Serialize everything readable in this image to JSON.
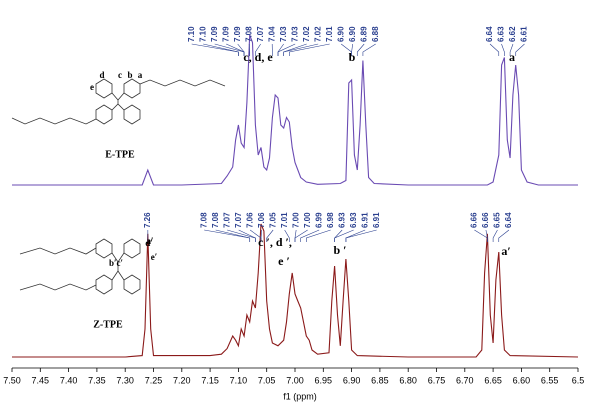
{
  "chart_data": [
    {
      "type": "line",
      "label": "E-TPE",
      "color": "#6a4bb3",
      "xlim": [
        7.5,
        6.5
      ],
      "ylim": [
        0,
        100
      ],
      "annotations": [
        "c, d, e",
        "b",
        "a"
      ],
      "structure_labels": [
        "d",
        "c",
        "b",
        "a",
        "e"
      ],
      "peak_labels": [
        {
          "value": 7.1,
          "label": "7.10"
        },
        {
          "value": 7.1,
          "label": "7.10"
        },
        {
          "value": 7.09,
          "label": "7.09"
        },
        {
          "value": 7.09,
          "label": "7.09"
        },
        {
          "value": 7.09,
          "label": "7.09"
        },
        {
          "value": 7.08,
          "label": "7.08"
        },
        {
          "value": 7.07,
          "label": "7.07"
        },
        {
          "value": 7.04,
          "label": "7.04"
        },
        {
          "value": 7.03,
          "label": "7.03"
        },
        {
          "value": 7.03,
          "label": "7.03"
        },
        {
          "value": 7.02,
          "label": "7.02"
        },
        {
          "value": 7.02,
          "label": "7.02"
        },
        {
          "value": 7.01,
          "label": "7.01"
        },
        {
          "value": 6.9,
          "label": "6.90"
        },
        {
          "value": 6.9,
          "label": "6.90"
        },
        {
          "value": 6.89,
          "label": "6.89"
        },
        {
          "value": 6.88,
          "label": "6.88"
        },
        {
          "value": 6.64,
          "label": "6.64"
        },
        {
          "value": 6.63,
          "label": "6.63"
        },
        {
          "value": 6.62,
          "label": "6.62"
        },
        {
          "value": 6.61,
          "label": "6.61"
        }
      ],
      "x": [
        7.5,
        7.3,
        7.27,
        7.26,
        7.25,
        7.2,
        7.13,
        7.12,
        7.11,
        7.105,
        7.1,
        7.095,
        7.09,
        7.085,
        7.08,
        7.075,
        7.07,
        7.065,
        7.06,
        7.055,
        7.05,
        7.045,
        7.04,
        7.035,
        7.03,
        7.025,
        7.02,
        7.015,
        7.01,
        7.005,
        7.0,
        6.99,
        6.98,
        6.96,
        6.92,
        6.91,
        6.905,
        6.9,
        6.895,
        6.89,
        6.885,
        6.88,
        6.875,
        6.87,
        6.86,
        6.8,
        6.66,
        6.65,
        6.64,
        6.635,
        6.63,
        6.625,
        6.62,
        6.615,
        6.61,
        6.605,
        6.6,
        6.59,
        6.57,
        6.5
      ],
      "values": [
        0,
        0,
        0,
        10,
        0,
        0,
        1,
        6,
        12,
        30,
        40,
        28,
        25,
        55,
        100,
        95,
        40,
        20,
        25,
        12,
        10,
        18,
        45,
        60,
        58,
        40,
        38,
        45,
        42,
        25,
        15,
        5,
        2,
        0.5,
        1,
        3,
        68,
        70,
        20,
        10,
        40,
        83,
        40,
        5,
        1,
        0,
        0,
        2,
        20,
        80,
        85,
        30,
        18,
        60,
        80,
        60,
        10,
        2,
        0,
        0
      ]
    },
    {
      "type": "line",
      "label": "Z-TPE",
      "color": "#8b1a1a",
      "xlim": [
        7.5,
        6.5
      ],
      "ylim": [
        0,
        100
      ],
      "xlabel": "f1 (ppm)",
      "xticks": [
        {
          "value": 7.5,
          "label": "7.50"
        },
        7.45,
        {
          "value": 7.4,
          "label": "7.40"
        },
        7.35,
        {
          "value": 7.3,
          "label": "7.30"
        },
        7.25,
        {
          "value": 7.2,
          "label": "7.20"
        },
        7.15,
        {
          "value": 7.1,
          "label": "7.10"
        },
        7.05,
        {
          "value": 7.0,
          "label": "7.00"
        },
        6.95,
        {
          "value": 6.9,
          "label": "6.90"
        },
        6.85,
        {
          "value": 6.8,
          "label": "6.80"
        },
        6.75,
        {
          "value": 6.7,
          "label": "6.70"
        },
        6.65,
        {
          "value": 6.6,
          "label": "6.60"
        },
        6.55,
        6.5
      ],
      "annotations": [
        "c ′, d ′,",
        "e ′",
        "b ′",
        "a′"
      ],
      "structure_labels": [
        "a′",
        "b′c′",
        "d′",
        "e′"
      ],
      "peak_labels": [
        {
          "value": 7.26,
          "label": "7.26"
        },
        {
          "value": 7.08,
          "label": "7.08"
        },
        {
          "value": 7.08,
          "label": "7.08"
        },
        {
          "value": 7.07,
          "label": "7.07"
        },
        {
          "value": 7.07,
          "label": "7.07"
        },
        {
          "value": 7.06,
          "label": "7.06"
        },
        {
          "value": 7.06,
          "label": "7.06"
        },
        {
          "value": 7.05,
          "label": "7.05"
        },
        {
          "value": 7.01,
          "label": "7.01"
        },
        {
          "value": 7.0,
          "label": "7.00"
        },
        {
          "value": 7.0,
          "label": "7.00"
        },
        {
          "value": 6.99,
          "label": "6.99"
        },
        {
          "value": 6.98,
          "label": "6.98"
        },
        {
          "value": 6.93,
          "label": "6.93"
        },
        {
          "value": 6.93,
          "label": "6.93"
        },
        {
          "value": 6.91,
          "label": "6.91"
        },
        {
          "value": 6.91,
          "label": "6.91"
        },
        {
          "value": 6.66,
          "label": "6.66"
        },
        {
          "value": 6.66,
          "label": "6.66"
        },
        {
          "value": 6.65,
          "label": "6.65"
        },
        {
          "value": 6.64,
          "label": "6.64"
        }
      ],
      "x": [
        7.5,
        7.3,
        7.27,
        7.265,
        7.26,
        7.255,
        7.25,
        7.2,
        7.15,
        7.13,
        7.12,
        7.11,
        7.105,
        7.1,
        7.095,
        7.09,
        7.085,
        7.08,
        7.075,
        7.07,
        7.065,
        7.06,
        7.055,
        7.05,
        7.045,
        7.04,
        7.03,
        7.02,
        7.015,
        7.01,
        7.005,
        7.0,
        6.995,
        6.99,
        6.985,
        6.98,
        6.975,
        6.97,
        6.96,
        6.94,
        6.935,
        6.93,
        6.925,
        6.92,
        6.915,
        6.91,
        6.905,
        6.9,
        6.89,
        6.8,
        6.68,
        6.67,
        6.665,
        6.66,
        6.655,
        6.65,
        6.645,
        6.64,
        6.635,
        6.63,
        6.62,
        6.5
      ],
      "values": [
        0,
        0,
        1,
        20,
        88,
        20,
        1,
        1,
        1,
        2,
        6,
        15,
        12,
        8,
        20,
        15,
        30,
        25,
        40,
        35,
        60,
        95,
        90,
        40,
        20,
        10,
        8,
        12,
        25,
        45,
        60,
        45,
        40,
        35,
        25,
        15,
        12,
        5,
        2,
        3,
        40,
        65,
        30,
        8,
        40,
        70,
        40,
        5,
        1,
        0,
        0,
        5,
        60,
        88,
        30,
        10,
        55,
        75,
        30,
        5,
        1,
        0
      ]
    }
  ]
}
